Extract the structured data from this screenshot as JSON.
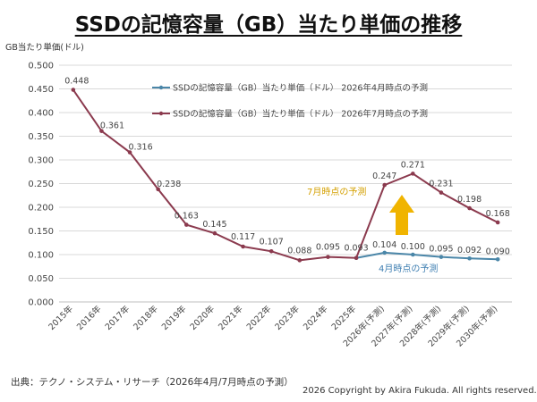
{
  "chart_data": {
    "type": "line",
    "title": "SSDの記憶容量（GB）当たり単価の推移",
    "ylabel": "GB当たり単価(ドル)",
    "xlabel": "",
    "ylim": [
      0,
      0.5
    ],
    "yticks": [
      "0.000",
      "0.050",
      "0.100",
      "0.150",
      "0.200",
      "0.250",
      "0.300",
      "0.350",
      "0.400",
      "0.450",
      "0.500"
    ],
    "grid": true,
    "legend_position": "top-center",
    "categories": [
      "2015年",
      "2016年",
      "2017年",
      "2018年",
      "2019年",
      "2020年",
      "2021年",
      "2022年",
      "2023年",
      "2024年",
      "2025年",
      "2026年(予測)",
      "2027年(予測)",
      "2028年(予測)",
      "2029年(予測)",
      "2030年(予測)"
    ],
    "series": [
      {
        "name": "SSDの記憶容量（GB）当たり単価（ドル） 2026年4月時点の予測",
        "color": "#4a86a8",
        "values": [
          null,
          null,
          null,
          null,
          null,
          null,
          null,
          null,
          null,
          null,
          0.093,
          0.104,
          0.1,
          0.095,
          0.092,
          0.09
        ],
        "labels": [
          null,
          null,
          null,
          null,
          null,
          null,
          null,
          null,
          null,
          null,
          null,
          "0.104",
          "0.100",
          "0.095",
          "0.092",
          "0.090"
        ]
      },
      {
        "name": "SSDの記憶容量（GB）当たり単価（ドル） 2026年7月時点の予測",
        "color": "#8b3a4e",
        "values": [
          0.448,
          0.361,
          0.316,
          0.238,
          0.163,
          0.145,
          0.117,
          0.107,
          0.088,
          0.095,
          0.093,
          0.247,
          0.271,
          0.231,
          0.198,
          0.168
        ],
        "labels": [
          "0.448",
          "0.361",
          "0.316",
          "0.238",
          "0.163",
          "0.145",
          "0.117",
          "0.107",
          "0.088",
          "0.095",
          "0.093",
          "0.247",
          "0.271",
          "0.231",
          "0.198",
          "0.168"
        ]
      }
    ],
    "annotations": {
      "july_label": "7月時点の予測",
      "april_label": "4月時点の予測",
      "arrow_color": "#f0b400"
    }
  },
  "footer": {
    "source": "出典：テクノ・システム・リサーチ（2026年4月/7月時点の予測）",
    "copyright": "2026 Copyright by Akira Fukuda.  All rights reserved."
  }
}
